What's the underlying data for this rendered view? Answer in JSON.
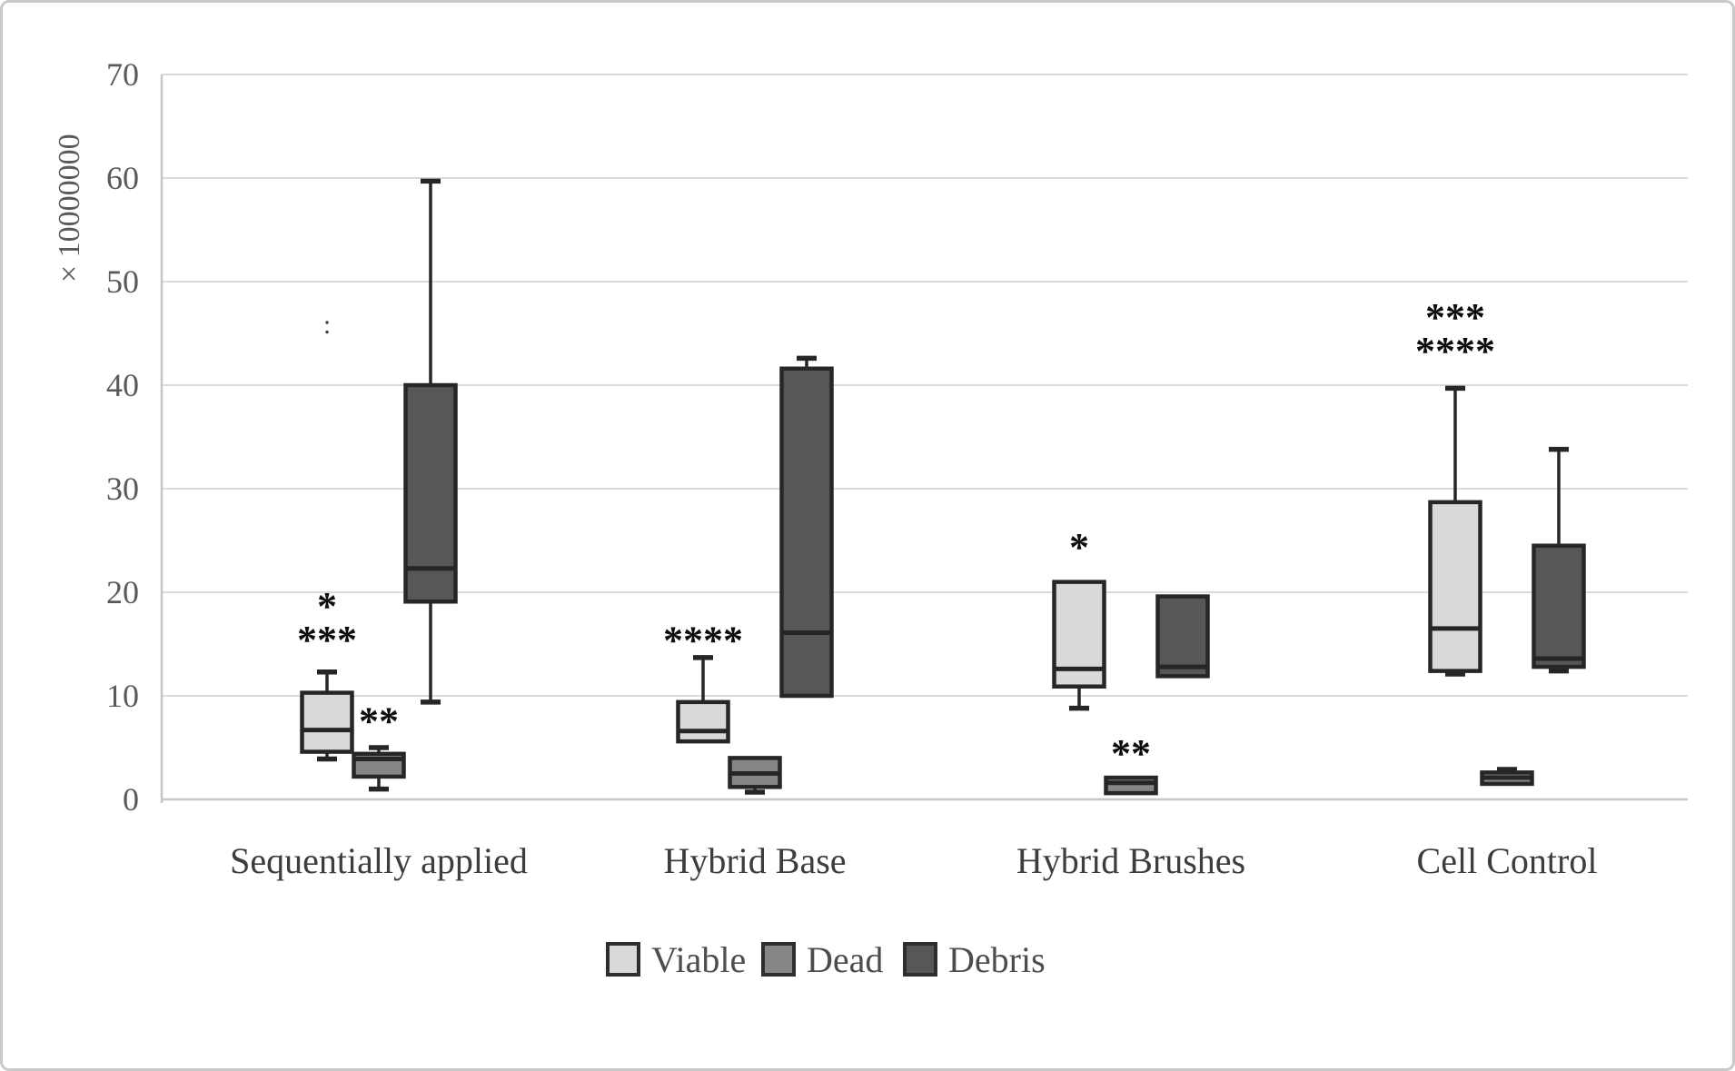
{
  "figure": {
    "background": "#ffffff",
    "border_color": "#c9c9c9",
    "grid_color": "#dadada",
    "axis_color": "#c6c6c6",
    "tick_label_color": "#595959",
    "category_label_color": "#3d3d3d",
    "legend_label_color": "#4d4d4d",
    "box_border_color": "#262626",
    "annotation_color": "#0d0d0d"
  },
  "chart_data": {
    "type": "boxplot",
    "title": "",
    "xlabel": "",
    "ylabel": "× 10000000",
    "ylim": [
      0,
      70
    ],
    "yticks": [
      0,
      10,
      20,
      30,
      40,
      50,
      60,
      70
    ],
    "grid": true,
    "legend_position": "bottom",
    "categories": [
      "Sequentially applied",
      "Hybrid Base",
      "Hybrid Brushes",
      "Cell Control"
    ],
    "series": [
      {
        "name": "Viable",
        "color": "#d9d9d9",
        "boxes": [
          {
            "min": 3.9,
            "q1": 4.6,
            "median": 6.7,
            "q3": 10.3,
            "max": 12.3
          },
          {
            "min": 5.6,
            "q1": 5.6,
            "median": 6.6,
            "q3": 9.4,
            "max": 13.7
          },
          {
            "min": 8.8,
            "q1": 10.9,
            "median": 12.6,
            "q3": 21.0,
            "max": 21.0
          },
          {
            "min": 12.1,
            "q1": 12.4,
            "median": 16.5,
            "q3": 28.7,
            "max": 39.7
          }
        ]
      },
      {
        "name": "Dead",
        "color": "#868686",
        "boxes": [
          {
            "min": 1.0,
            "q1": 2.2,
            "median": 3.9,
            "q3": 4.4,
            "max": 5.0
          },
          {
            "min": 0.7,
            "q1": 1.2,
            "median": 2.5,
            "q3": 4.0,
            "max": 4.0
          },
          {
            "min": 0.6,
            "q1": 0.6,
            "median": 1.6,
            "q3": 2.1,
            "max": 2.1
          },
          {
            "min": 1.4,
            "q1": 1.5,
            "median": 2.1,
            "q3": 2.6,
            "max": 2.9
          }
        ]
      },
      {
        "name": "Debris",
        "color": "#575757",
        "boxes": [
          {
            "min": 9.4,
            "q1": 19.1,
            "median": 22.3,
            "q3": 40.0,
            "max": 59.7
          },
          {
            "min": 10.0,
            "q1": 10.0,
            "median": 16.1,
            "q3": 41.6,
            "max": 42.6
          },
          {
            "min": 11.9,
            "q1": 11.9,
            "median": 12.8,
            "q3": 19.6,
            "max": 19.6
          },
          {
            "min": 12.4,
            "q1": 12.8,
            "median": 13.6,
            "q3": 24.5,
            "max": 33.8
          }
        ]
      }
    ],
    "annotations": [
      {
        "category": 0,
        "series": 0,
        "lines": [
          "*",
          "***"
        ],
        "value": 19.3
      },
      {
        "category": 0,
        "series": 1,
        "lines": [
          "**"
        ],
        "value": 8.2
      },
      {
        "category": 1,
        "series": 0,
        "lines": [
          "****"
        ],
        "value": 16.0
      },
      {
        "category": 2,
        "series": 0,
        "lines": [
          "*"
        ],
        "value": 25.0
      },
      {
        "category": 2,
        "series": 1,
        "lines": [
          "**"
        ],
        "value": 5.1
      },
      {
        "category": 3,
        "series": 0,
        "lines": [
          "***",
          "****"
        ],
        "value": 47.2
      },
      {
        "category": 0,
        "series": 0,
        "lines": [
          ":"
        ],
        "value": 46.3,
        "artifact": true
      }
    ],
    "legend": {
      "items": [
        {
          "label": "Viable",
          "color": "#d9d9d9"
        },
        {
          "label": "Dead",
          "color": "#868686"
        },
        {
          "label": "Debris",
          "color": "#575757"
        }
      ]
    }
  }
}
